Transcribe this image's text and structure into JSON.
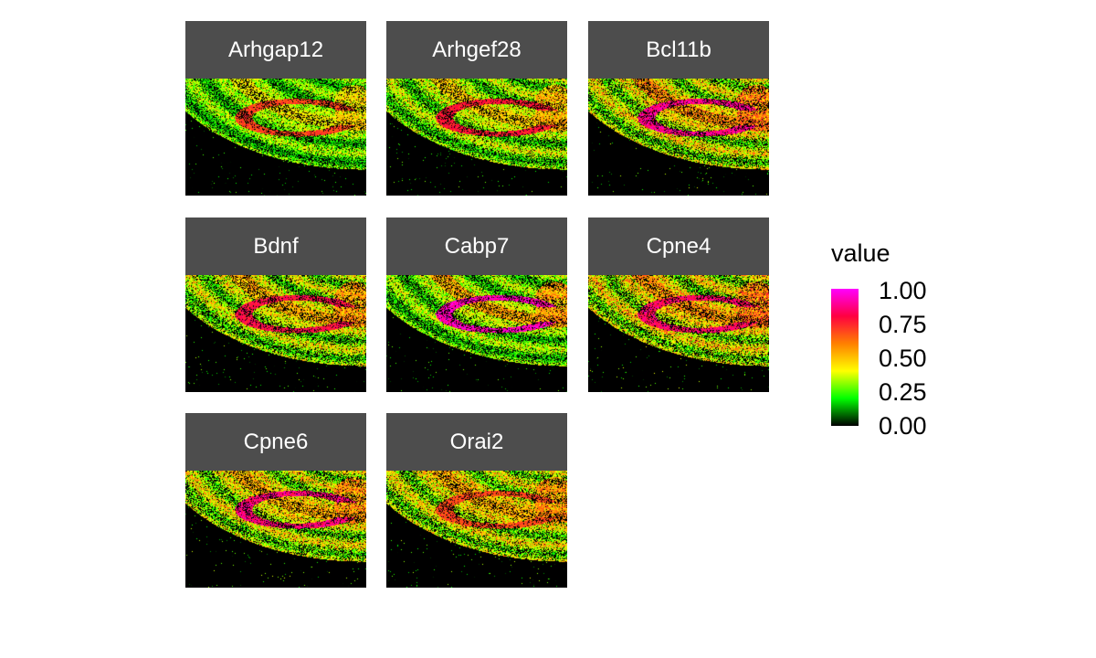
{
  "chart_data": {
    "type": "heatmap",
    "layout": "faceted small multiples",
    "facets": [
      {
        "label": "Arhgap12",
        "peak": 0.75,
        "dg_level": 0.72,
        "ca_level": 0.45,
        "bg_level": 0.28
      },
      {
        "label": "Arhgef28",
        "peak": 0.8,
        "dg_level": 0.8,
        "ca_level": 0.5,
        "bg_level": 0.32
      },
      {
        "label": "Bcl11b",
        "peak": 0.95,
        "dg_level": 0.9,
        "ca_level": 0.6,
        "bg_level": 0.38
      },
      {
        "label": "Bdnf",
        "peak": 0.85,
        "dg_level": 0.82,
        "ca_level": 0.55,
        "bg_level": 0.35
      },
      {
        "label": "Cabp7",
        "peak": 1.0,
        "dg_level": 0.95,
        "ca_level": 0.55,
        "bg_level": 0.3
      },
      {
        "label": "Cpne4",
        "peak": 0.95,
        "dg_level": 0.85,
        "ca_level": 0.6,
        "bg_level": 0.4
      },
      {
        "label": "Cpne6",
        "peak": 0.95,
        "dg_level": 0.88,
        "ca_level": 0.55,
        "bg_level": 0.38
      },
      {
        "label": "Orai2",
        "peak": 0.85,
        "dg_level": 0.7,
        "ca_level": 0.55,
        "bg_level": 0.38
      }
    ],
    "legend": {
      "title": "value",
      "range": [
        0,
        1
      ],
      "ticks": [
        "1.00",
        "0.75",
        "0.50",
        "0.25",
        "0.00"
      ],
      "colors": [
        "#000000",
        "#00ff00",
        "#ffff00",
        "#ff8000",
        "#ff0040",
        "#ff00ff"
      ],
      "placement": "right"
    },
    "background": "#000000",
    "strip_color": "#4d4d4d",
    "strip_text_color": "#ffffff"
  }
}
